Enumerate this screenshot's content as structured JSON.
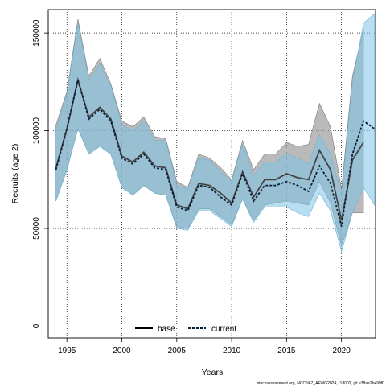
{
  "chart_data": {
    "type": "line",
    "xlabel": "Years",
    "ylabel": "Recruits (age 2)",
    "xlim": [
      1993.3,
      2023.1
    ],
    "ylim": [
      -6000,
      162000
    ],
    "x_ticks": [
      1995,
      2000,
      2005,
      2010,
      2015,
      2020
    ],
    "y_ticks": [
      0,
      50000,
      100000,
      150000
    ],
    "grid": true,
    "grid_style": "dotted",
    "legend_position": "bottom-center",
    "footer": "stockassessment.org, NCCN67_AFWG2024, r18002, git e38ae2b499f0",
    "colors": {
      "base_line": "#444444",
      "base_band": "#8c8c8c",
      "current_line": "#0a1e3c",
      "current_band": "#7ec2e6"
    },
    "x": [
      1994,
      1995,
      1996,
      1997,
      1998,
      1999,
      2000,
      2001,
      2002,
      2003,
      2004,
      2005,
      2006,
      2007,
      2008,
      2009,
      2010,
      2011,
      2012,
      2013,
      2014,
      2015,
      2016,
      2017,
      2018,
      2019,
      2020,
      2021,
      2022,
      2023
    ],
    "series": [
      {
        "name": "base",
        "style": "solid",
        "values": [
          81000,
          101000,
          126000,
          107000,
          112000,
          106000,
          87000,
          84000,
          89000,
          82000,
          81000,
          62000,
          60000,
          73000,
          72000,
          68000,
          63000,
          79000,
          66000,
          75000,
          75000,
          78000,
          76000,
          75000,
          90000,
          80000,
          54000,
          85000,
          94000,
          null
        ],
        "lower": [
          64000,
          80000,
          101000,
          88000,
          92000,
          88000,
          71000,
          67000,
          72000,
          68000,
          67000,
          51000,
          50000,
          60000,
          60000,
          56000,
          52000,
          65000,
          54000,
          62000,
          63000,
          64000,
          63000,
          62000,
          74000,
          63000,
          41000,
          58000,
          58000,
          null
        ],
        "upper": [
          103000,
          120000,
          157000,
          128000,
          137000,
          124000,
          105000,
          102000,
          107000,
          97000,
          96000,
          74000,
          71000,
          88000,
          86000,
          81000,
          75000,
          95000,
          80000,
          88000,
          88000,
          94000,
          92000,
          93000,
          114000,
          102000,
          70000,
          128000,
          152000,
          null
        ]
      },
      {
        "name": "current",
        "style": "dashed",
        "values": [
          80000,
          101000,
          126000,
          106000,
          111000,
          105000,
          86000,
          83000,
          88000,
          81000,
          80000,
          61000,
          59000,
          72000,
          71000,
          66000,
          62000,
          78000,
          64000,
          72000,
          72000,
          74000,
          72000,
          69000,
          82000,
          73000,
          51000,
          88000,
          105000,
          101000
        ],
        "lower": [
          64000,
          80000,
          101000,
          88000,
          92000,
          88000,
          71000,
          67000,
          72000,
          68000,
          67000,
          50000,
          49000,
          59000,
          59000,
          55000,
          51000,
          65000,
          53000,
          61000,
          61000,
          61000,
          58000,
          56000,
          68000,
          59000,
          38000,
          58000,
          71000,
          62000
        ],
        "upper": [
          100000,
          119000,
          155000,
          126000,
          134000,
          123000,
          103000,
          100000,
          105000,
          95000,
          95000,
          72000,
          70000,
          86000,
          85000,
          79000,
          74000,
          93000,
          77000,
          84000,
          84000,
          88000,
          86000,
          83000,
          98000,
          88000,
          67000,
          125000,
          155000,
          160000
        ]
      }
    ]
  }
}
